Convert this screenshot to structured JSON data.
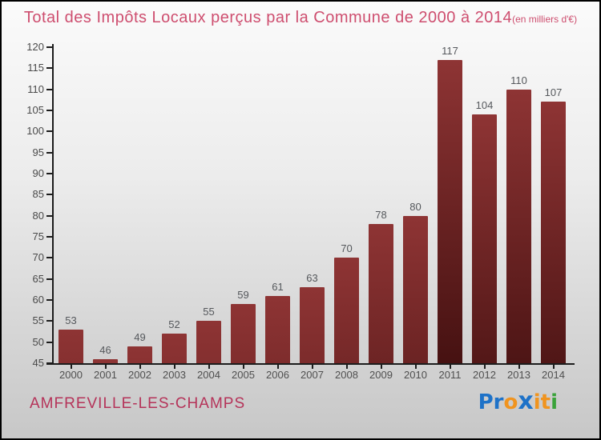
{
  "title": "Total des Impôts Locaux perçus par la Commune de 2000 à 2014",
  "subtitle": "(en milliers d'€)",
  "footer": {
    "commune": "AMFREVILLE-LES-CHAMPS"
  },
  "logo": {
    "name": "Proxiti",
    "letters": [
      {
        "ch": "P",
        "color": "#1e72c8",
        "big": false
      },
      {
        "ch": "r",
        "color": "#1e72c8",
        "big": false
      },
      {
        "ch": "o",
        "color": "#f0941f",
        "big": false
      },
      {
        "ch": "x",
        "color": "#1e72c8",
        "big": true
      },
      {
        "ch": "i",
        "color": "#f0941f",
        "big": false
      },
      {
        "ch": "t",
        "color": "#f0941f",
        "big": false
      },
      {
        "ch": "i",
        "color": "#3aa33a",
        "big": false
      }
    ]
  },
  "colors": {
    "title_text": "#ce4e6f",
    "commune_text": "#b53359",
    "bar_gradient_top": "#8e3434",
    "bar_gradient_bottom": "#431010",
    "axis": "#1c1c1c",
    "tick_label": "#4a4a4a",
    "value_label": "#55585c"
  },
  "chart_data": {
    "type": "bar",
    "title": "Total des Impôts Locaux perçus par la Commune de 2000 à 2014",
    "subtitle": "(en milliers d'€)",
    "categories": [
      "2000",
      "2001",
      "2002",
      "2003",
      "2004",
      "2005",
      "2006",
      "2007",
      "2008",
      "2009",
      "2010",
      "2011",
      "2012",
      "2013",
      "2014"
    ],
    "values": [
      53,
      46,
      49,
      52,
      55,
      59,
      61,
      63,
      70,
      78,
      80,
      117,
      104,
      110,
      107
    ],
    "xlabel": "",
    "ylabel": "",
    "ylim": [
      45,
      120
    ],
    "yticks": [
      45,
      50,
      55,
      60,
      65,
      70,
      75,
      80,
      85,
      90,
      95,
      100,
      105,
      110,
      115,
      120
    ],
    "grid": false,
    "legend": false,
    "value_labels_shown": true
  }
}
